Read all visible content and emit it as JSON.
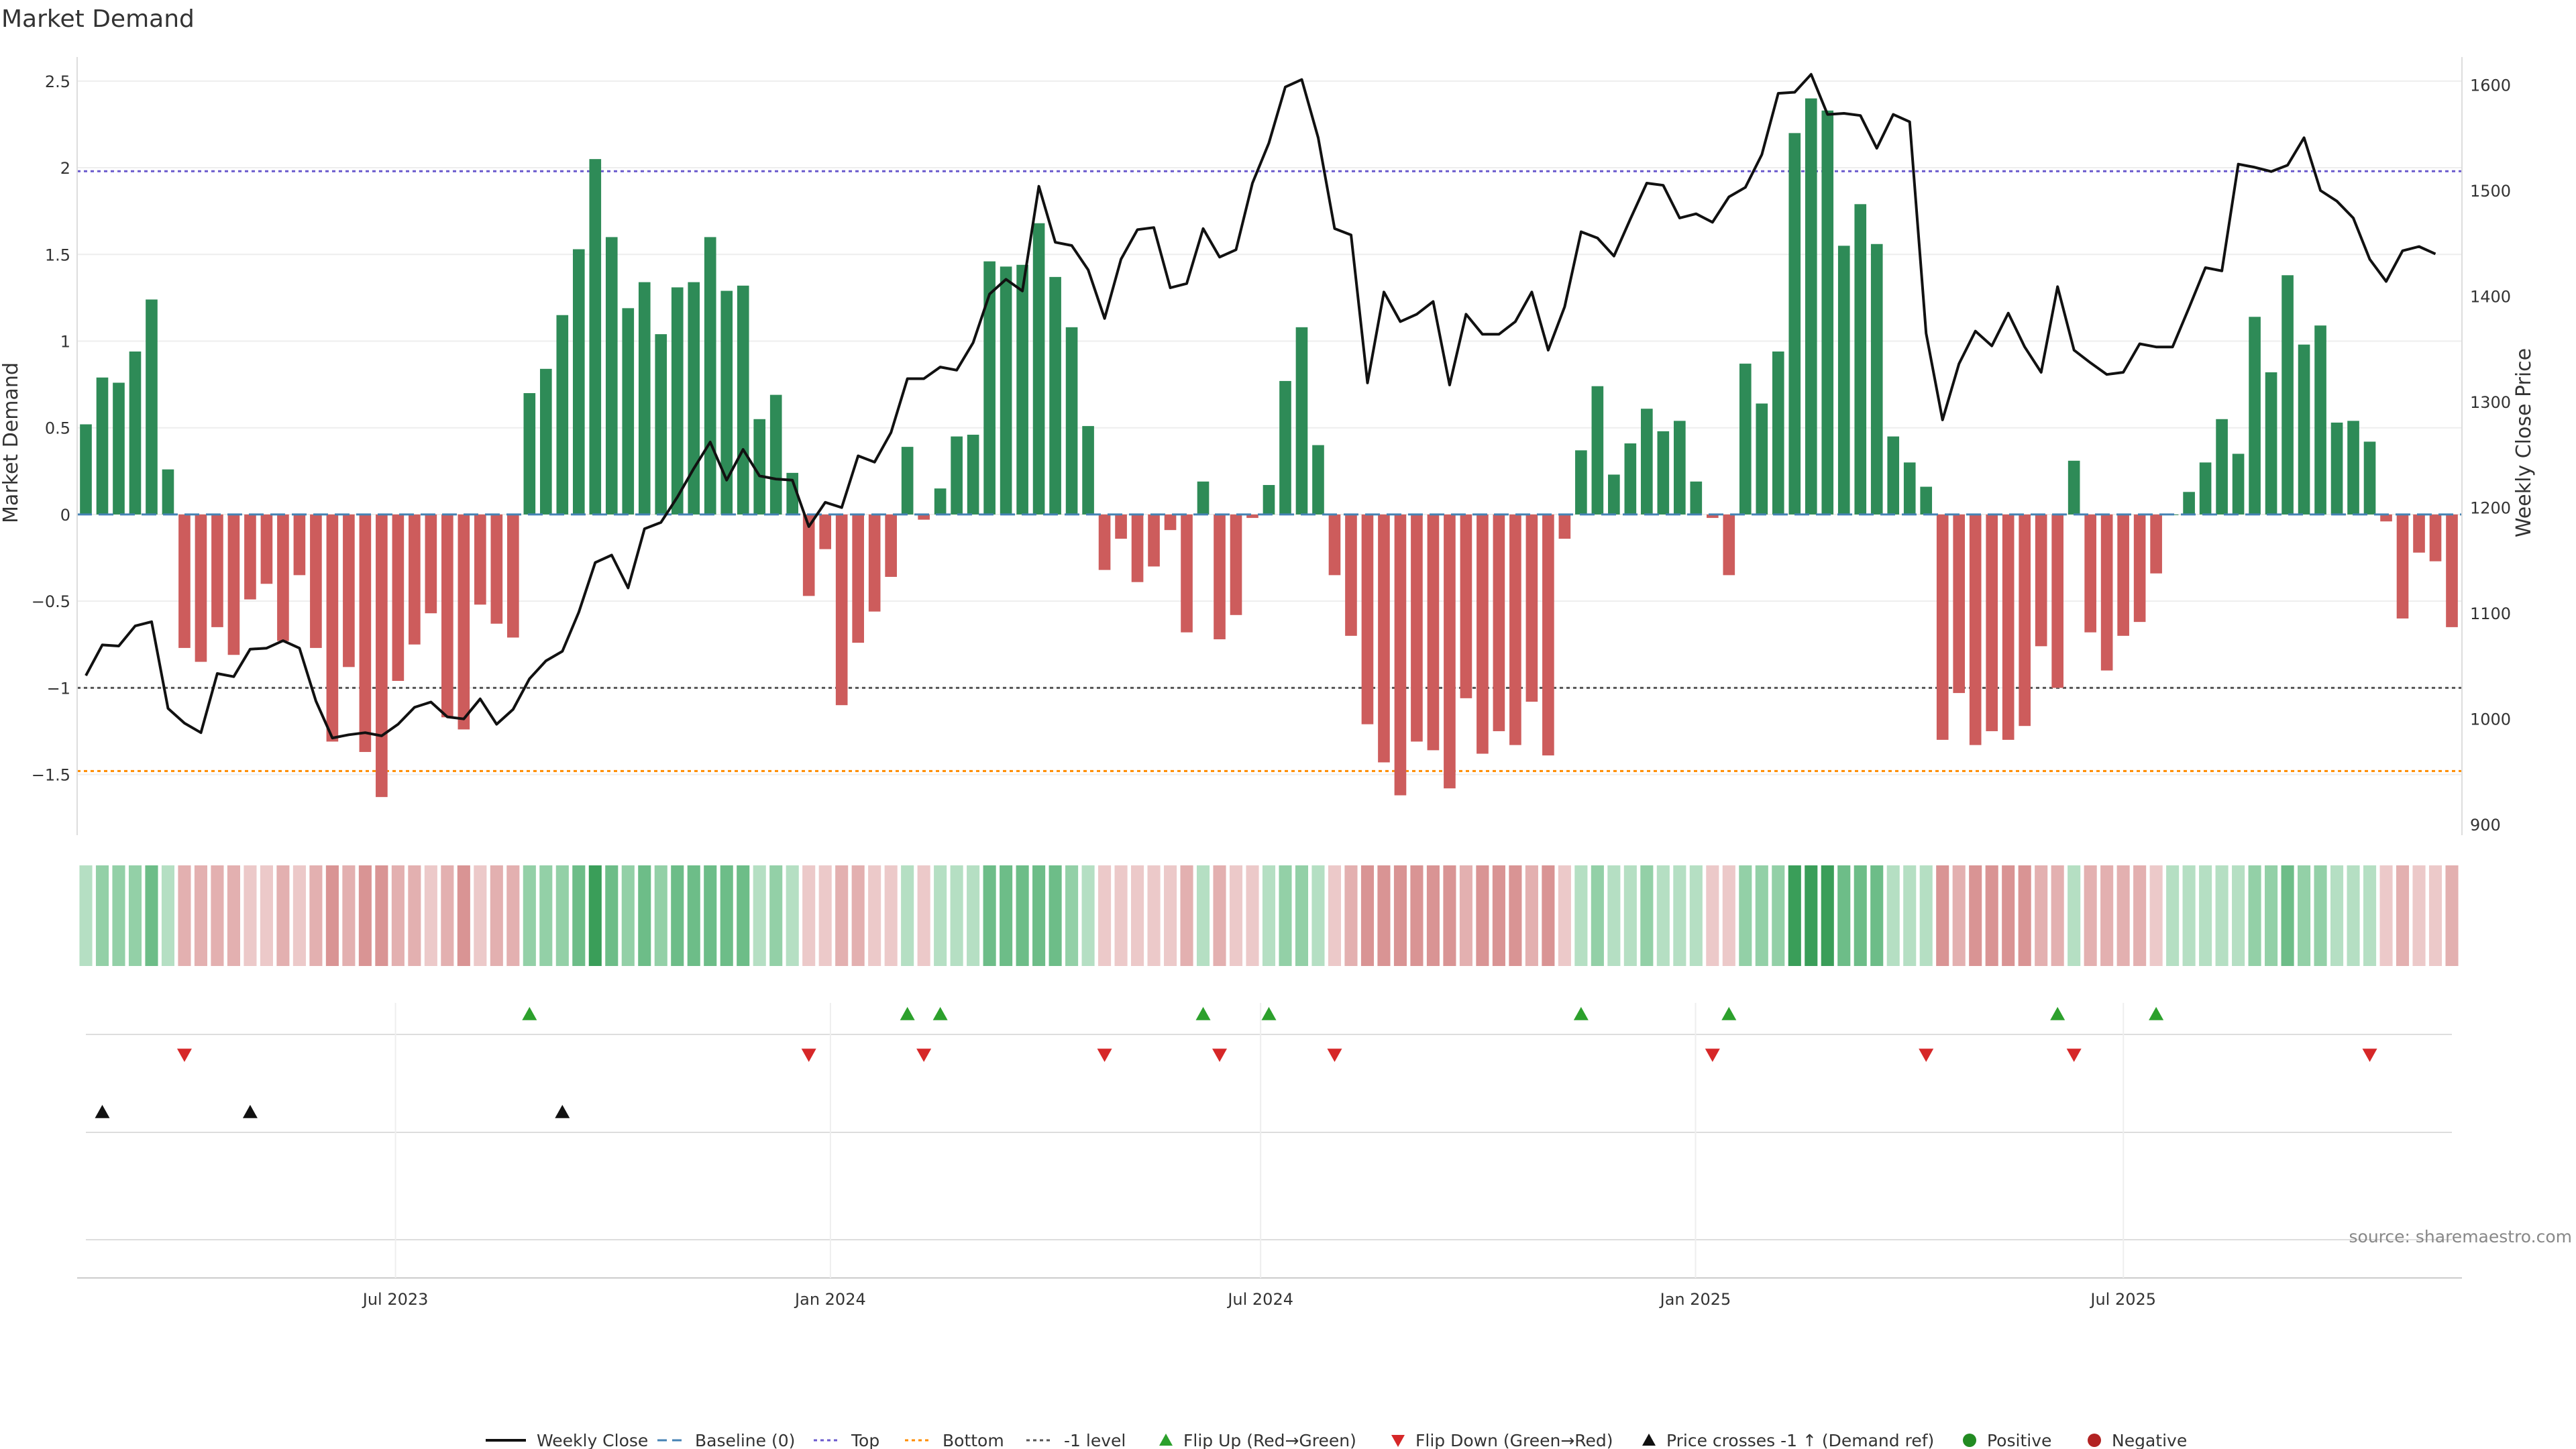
{
  "chart_data": {
    "type": "bar",
    "title": "Market Demand",
    "ylabel": "Market Demand",
    "y2label": "Weekly Close Price",
    "ylim": [
      -1.85,
      2.6
    ],
    "y2lim": [
      890,
      1620
    ],
    "yticks": [
      "2.5",
      "2",
      "1.5",
      "1",
      "0.5",
      "0",
      "−0.5",
      "−1",
      "−1.5"
    ],
    "yticks_values": [
      2.5,
      2,
      1.5,
      1,
      0.5,
      0,
      -0.5,
      -1,
      -1.5
    ],
    "y2ticks": [
      "1600",
      "1500",
      "1400",
      "1300",
      "1200",
      "1100",
      "1000",
      "900"
    ],
    "y2ticks_values": [
      1600,
      1500,
      1400,
      1300,
      1200,
      1100,
      1000,
      900
    ],
    "levels": {
      "top": 1.98,
      "minus_one": -1.0,
      "bottom": -1.48
    },
    "x_start": "2023-02-20",
    "x_end": "2025-11-17",
    "x_ticks": [
      {
        "label": "Jul 2023",
        "date": "2023-07-01"
      },
      {
        "label": "Jan 2024",
        "date": "2024-01-01"
      },
      {
        "label": "Jul 2024",
        "date": "2024-07-01"
      },
      {
        "label": "Jan 2025",
        "date": "2025-01-01"
      },
      {
        "label": "Jul 2025",
        "date": "2025-07-01"
      }
    ],
    "demand": [
      0.52,
      0.79,
      0.76,
      0.94,
      1.24,
      0.26,
      -0.77,
      -0.85,
      -0.65,
      -0.81,
      -0.49,
      -0.4,
      -0.73,
      -0.35,
      -0.77,
      -1.31,
      -0.88,
      -1.37,
      -1.63,
      -0.96,
      -0.75,
      -0.57,
      -1.17,
      -1.24,
      -0.52,
      -0.63,
      -0.71,
      0.7,
      0.84,
      1.15,
      1.53,
      2.05,
      1.6,
      1.19,
      1.34,
      1.04,
      1.31,
      1.34,
      1.6,
      1.29,
      1.32,
      0.55,
      0.69,
      0.24,
      -0.47,
      -0.2,
      -1.1,
      -0.74,
      -0.56,
      -0.36,
      0.39,
      -0.03,
      0.15,
      0.45,
      0.46,
      1.46,
      1.43,
      1.44,
      1.68,
      1.37,
      1.08,
      0.51,
      -0.32,
      -0.14,
      -0.39,
      -0.3,
      -0.09,
      -0.68,
      0.19,
      -0.72,
      -0.58,
      -0.02,
      0.17,
      0.77,
      1.08,
      0.4,
      -0.35,
      -0.7,
      -1.21,
      -1.43,
      -1.62,
      -1.31,
      -1.36,
      -1.58,
      -1.06,
      -1.38,
      -1.25,
      -1.33,
      -1.08,
      -1.39,
      -0.14,
      0.37,
      0.74,
      0.23,
      0.41,
      0.61,
      0.48,
      0.54,
      0.19,
      -0.02,
      -0.35,
      0.87,
      0.64,
      0.94,
      2.2,
      2.4,
      2.33,
      1.55,
      1.79,
      1.56,
      0.45,
      0.3,
      0.16,
      -1.3,
      -1.03,
      -1.33,
      -1.25,
      -1.3,
      -1.22,
      -0.76,
      -1.0,
      0.31,
      -0.68,
      -0.9,
      -0.7,
      -0.62,
      -0.34,
      0.0,
      0.13,
      0.3,
      0.55,
      0.35,
      1.14,
      0.82,
      1.38,
      0.98,
      1.09,
      0.53,
      0.54,
      0.42,
      -0.04,
      -0.6,
      -0.22,
      -0.27,
      -0.65
    ],
    "price": [
      1041,
      1070,
      1069,
      1088,
      1092,
      1010,
      996,
      987,
      1043,
      1040,
      1066,
      1067,
      1074,
      1067,
      1017,
      982,
      985,
      987,
      984,
      995,
      1011,
      1016,
      1002,
      1000,
      1019,
      995,
      1009,
      1038,
      1055,
      1064,
      1101,
      1148,
      1155,
      1124,
      1180,
      1186,
      1210,
      1237,
      1262,
      1226,
      1255,
      1230,
      1227,
      1226,
      1182,
      1205,
      1200,
      1249,
      1243,
      1271,
      1322,
      1322,
      1333,
      1330,
      1356,
      1402,
      1416,
      1405,
      1504,
      1451,
      1448,
      1425,
      1379,
      1435,
      1463,
      1465,
      1408,
      1412,
      1464,
      1437,
      1444,
      1507,
      1545,
      1598,
      1605,
      1550,
      1464,
      1458,
      1318,
      1404,
      1376,
      1383,
      1395,
      1316,
      1383,
      1364,
      1364,
      1376,
      1404,
      1349,
      1390,
      1461,
      1455,
      1438,
      1473,
      1507,
      1505,
      1474,
      1478,
      1470,
      1494,
      1503,
      1534,
      1592,
      1593,
      1610,
      1572,
      1573,
      1571,
      1540,
      1572,
      1565,
      1365,
      1283,
      1336,
      1367,
      1353,
      1384,
      1352,
      1328,
      1409,
      1349,
      1337,
      1326,
      1328,
      1355,
      1352,
      1352,
      1389,
      1427,
      1424,
      1525,
      1522,
      1518,
      1524,
      1550,
      1500,
      1490,
      1474,
      1435,
      1414,
      1443,
      1447,
      1440
    ],
    "flip_up_idx": [
      27,
      50,
      52,
      68,
      72,
      91,
      100,
      120,
      126
    ],
    "flip_down_idx": [
      6,
      44,
      51,
      62,
      69,
      76,
      99,
      112,
      121,
      139
    ],
    "cross_idx": [
      1,
      10,
      29
    ],
    "strip_shades": {
      "positive": [
        "#b5dfc3",
        "#93d0a7",
        "#6dbd88",
        "#3a9e59"
      ],
      "negative": [
        "#ecc9c9",
        "#e3b0b0",
        "#d99494",
        "#cc7575"
      ]
    },
    "colors": {
      "positive_bar": "#2e8b57",
      "negative_bar": "#cd5c5c",
      "price_line": "#111111",
      "baseline": "#4682b4",
      "top": "#6a5acd",
      "bottom": "#ff8c00",
      "minus_one": "#555555",
      "flip_up": "#2ca02c",
      "flip_down": "#d62728",
      "cross": "#111111",
      "positive_marker": "#228b22",
      "negative_marker": "#b22222"
    },
    "legend": [
      {
        "key": "weekly-close",
        "label": "Weekly Close"
      },
      {
        "key": "baseline",
        "label": "Baseline (0)"
      },
      {
        "key": "top",
        "label": "Top"
      },
      {
        "key": "bottom",
        "label": "Bottom"
      },
      {
        "key": "minus-one",
        "label": "-1 level"
      },
      {
        "key": "flip-up",
        "label": "Flip Up (Red→Green)"
      },
      {
        "key": "flip-down",
        "label": "Flip Down (Green→Red)"
      },
      {
        "key": "cross",
        "label": "Price crosses -1 ↑ (Demand ref)"
      },
      {
        "key": "positive",
        "label": "Positive"
      },
      {
        "key": "negative",
        "label": "Negative"
      }
    ],
    "source": "source: sharemaestro.com"
  }
}
